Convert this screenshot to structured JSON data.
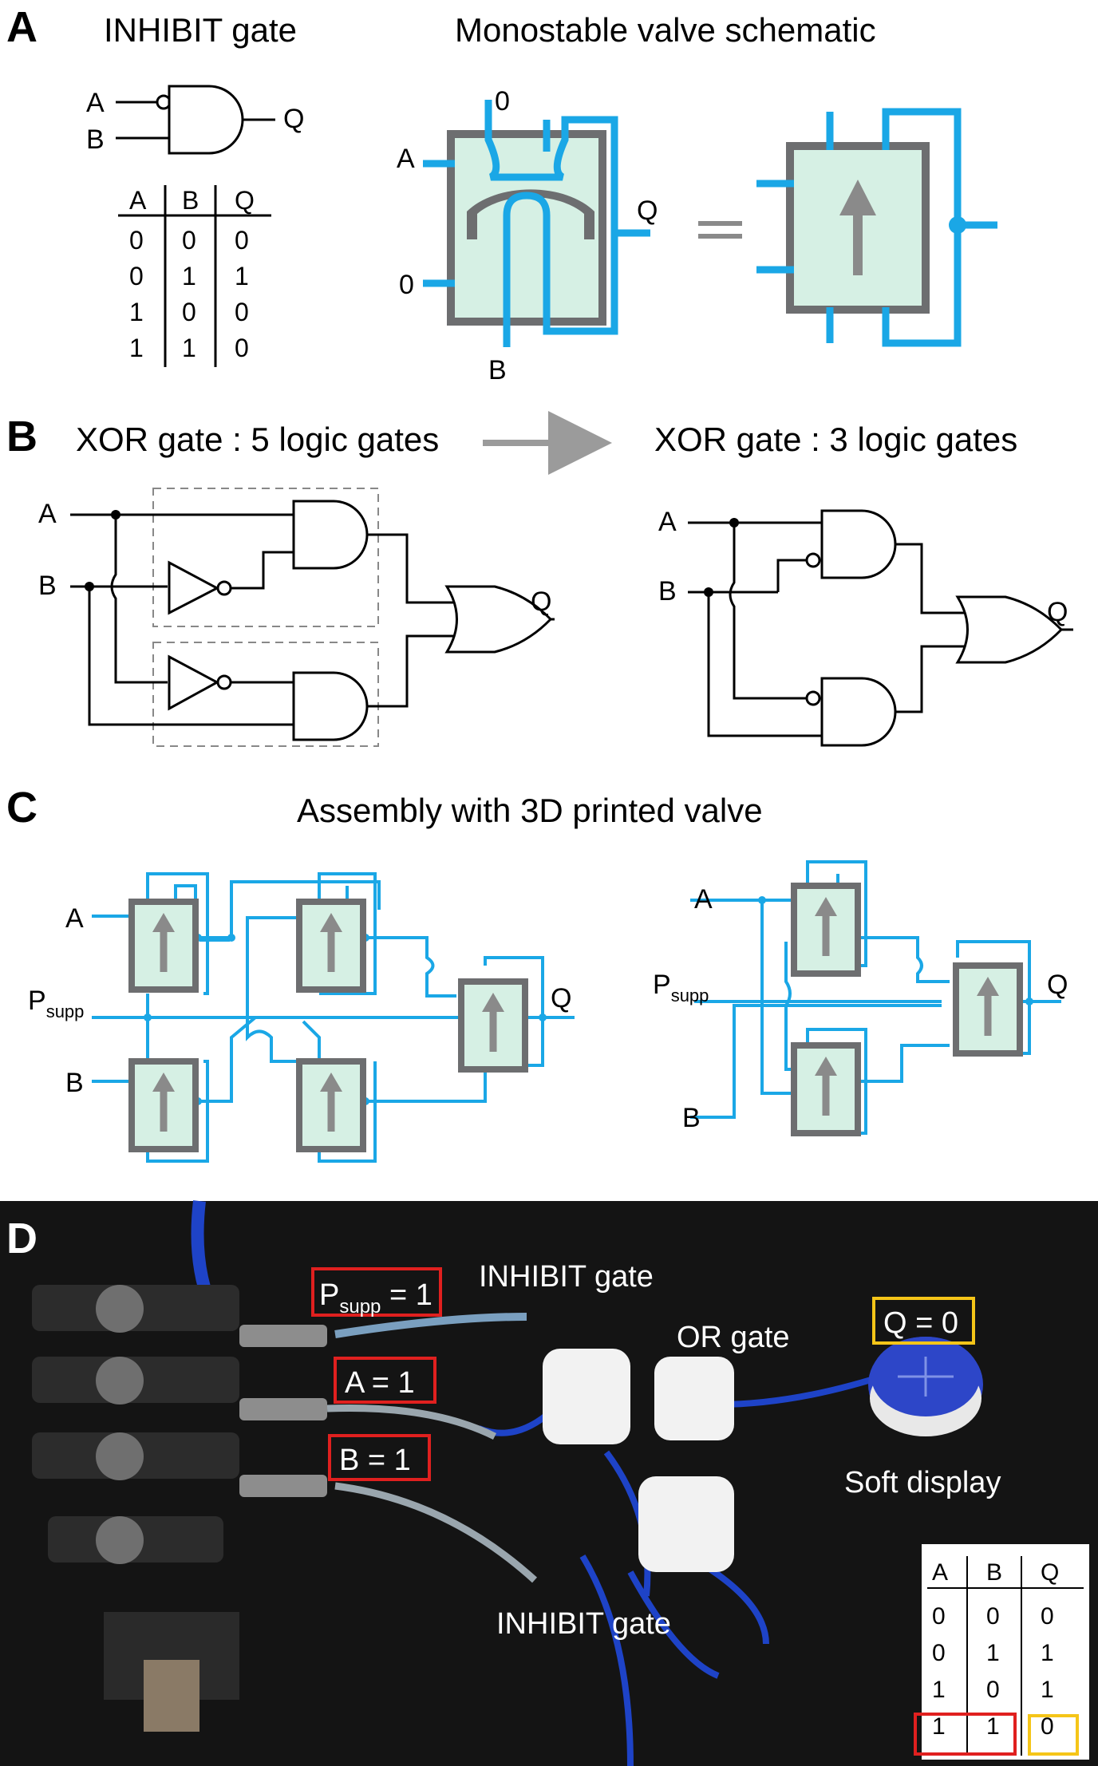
{
  "panels": {
    "a": {
      "letter": "A",
      "inhibit_title": "INHIBIT gate",
      "valve_title": "Monostable valve schematic",
      "gate_inputs": [
        "A",
        "B"
      ],
      "gate_output": "Q",
      "truth_table": {
        "headers": [
          "A",
          "B",
          "Q"
        ],
        "rows": [
          [
            "0",
            "0",
            "0"
          ],
          [
            "0",
            "1",
            "1"
          ],
          [
            "1",
            "0",
            "0"
          ],
          [
            "1",
            "1",
            "0"
          ]
        ]
      },
      "valve_labels": {
        "top": "0",
        "left_top": "A",
        "left_bottom": "0",
        "bottom": "B",
        "right": "Q"
      }
    },
    "b": {
      "letter": "B",
      "left_title": "XOR gate : 5 logic gates",
      "right_title": "XOR gate : 3 logic gates",
      "inputs": [
        "A",
        "B"
      ],
      "output": "Q"
    },
    "c": {
      "letter": "C",
      "title": "Assembly with 3D printed valve",
      "inputs": [
        "A",
        "B"
      ],
      "supply_main": "P",
      "supply_sub": "supp",
      "output": "Q"
    },
    "d": {
      "letter": "D",
      "psupp_main": "P",
      "psupp_sub": "supp",
      "psupp_value": " = 1",
      "a_label": "A = 1",
      "b_label": "B = 1",
      "q_label": "Q = 0",
      "inhibit_top": "INHIBIT gate",
      "inhibit_bottom": "INHIBIT gate",
      "or_gate": "OR gate",
      "soft_display": "Soft display",
      "truth_table": {
        "headers": [
          "A",
          "B",
          "Q"
        ],
        "rows": [
          [
            "0",
            "0",
            "0"
          ],
          [
            "0",
            "1",
            "1"
          ],
          [
            "1",
            "0",
            "1"
          ],
          [
            "1",
            "1",
            "0"
          ]
        ]
      }
    }
  },
  "colors": {
    "tube_blue": "#1aa7e6",
    "valve_fill": "#d6f0e4",
    "valve_frame": "#6d6e70",
    "highlight_red": "#e0201f",
    "highlight_yellow": "#f5c518",
    "photo_bg": "#141414"
  }
}
